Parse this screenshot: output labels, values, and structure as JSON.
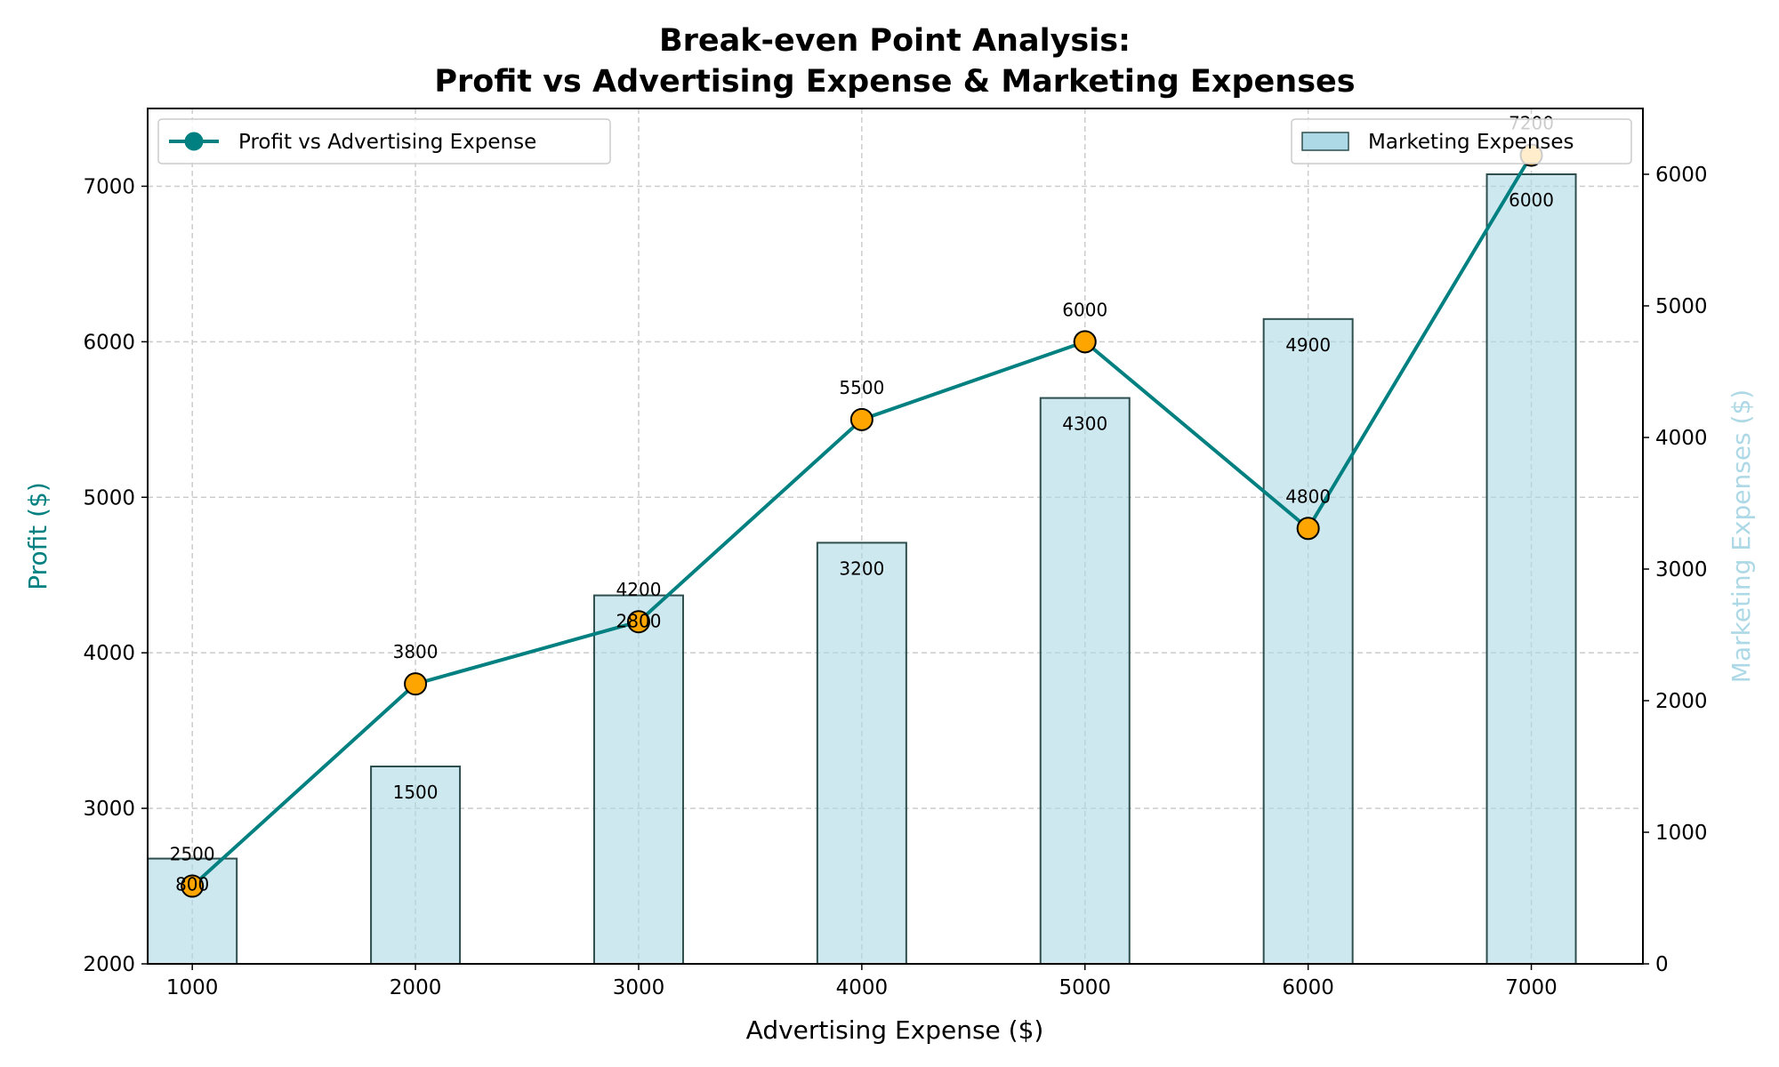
{
  "chart_data": {
    "type": "bar+line",
    "title_line1": "Break-even Point Analysis:",
    "title_line2": "Profit vs Advertising Expense & Marketing Expenses",
    "xlabel": "Advertising Expense ($)",
    "ylabel_left": "Profit ($)",
    "ylabel_right": "Marketing Expenses ($)",
    "x": [
      1000,
      2000,
      3000,
      4000,
      5000,
      6000,
      7000
    ],
    "x_ticks": [
      "1000",
      "2000",
      "3000",
      "4000",
      "5000",
      "6000",
      "7000"
    ],
    "xlim": [
      800,
      7500
    ],
    "ylim_left": [
      2000,
      7500
    ],
    "ylim_right": [
      0,
      6500
    ],
    "y_left_ticks": [
      "2000",
      "3000",
      "4000",
      "5000",
      "6000",
      "7000"
    ],
    "y_right_ticks": [
      "0",
      "1000",
      "2000",
      "3000",
      "4000",
      "5000",
      "6000"
    ],
    "grid": true,
    "series": [
      {
        "name": "Profit vs Advertising Expense",
        "type": "line",
        "axis": "left",
        "values": [
          2500,
          3800,
          4200,
          5500,
          6000,
          4800,
          7200
        ],
        "labels": [
          "2500",
          "3800",
          "4200",
          "5500",
          "6000",
          "4800",
          "7200"
        ],
        "color": "#008080",
        "marker_color": "#FFA500"
      },
      {
        "name": "Marketing Expenses",
        "type": "bar",
        "axis": "right",
        "values": [
          800,
          1500,
          2800,
          3200,
          4300,
          4900,
          6000
        ],
        "labels": [
          "800",
          "1500",
          "2800",
          "3200",
          "4300",
          "4900",
          "6000"
        ],
        "color": "#ADD8E6"
      }
    ],
    "legend_left": "top-left",
    "legend_right": "top-right",
    "colors": {
      "line": "#008080",
      "marker": "#FFA500",
      "bar": "#ADD8E6",
      "bar_edge": "#2F4F4F",
      "left_axis_label": "#008080",
      "right_axis_label": "#ADD8E6",
      "grid": "#cccccc"
    }
  }
}
